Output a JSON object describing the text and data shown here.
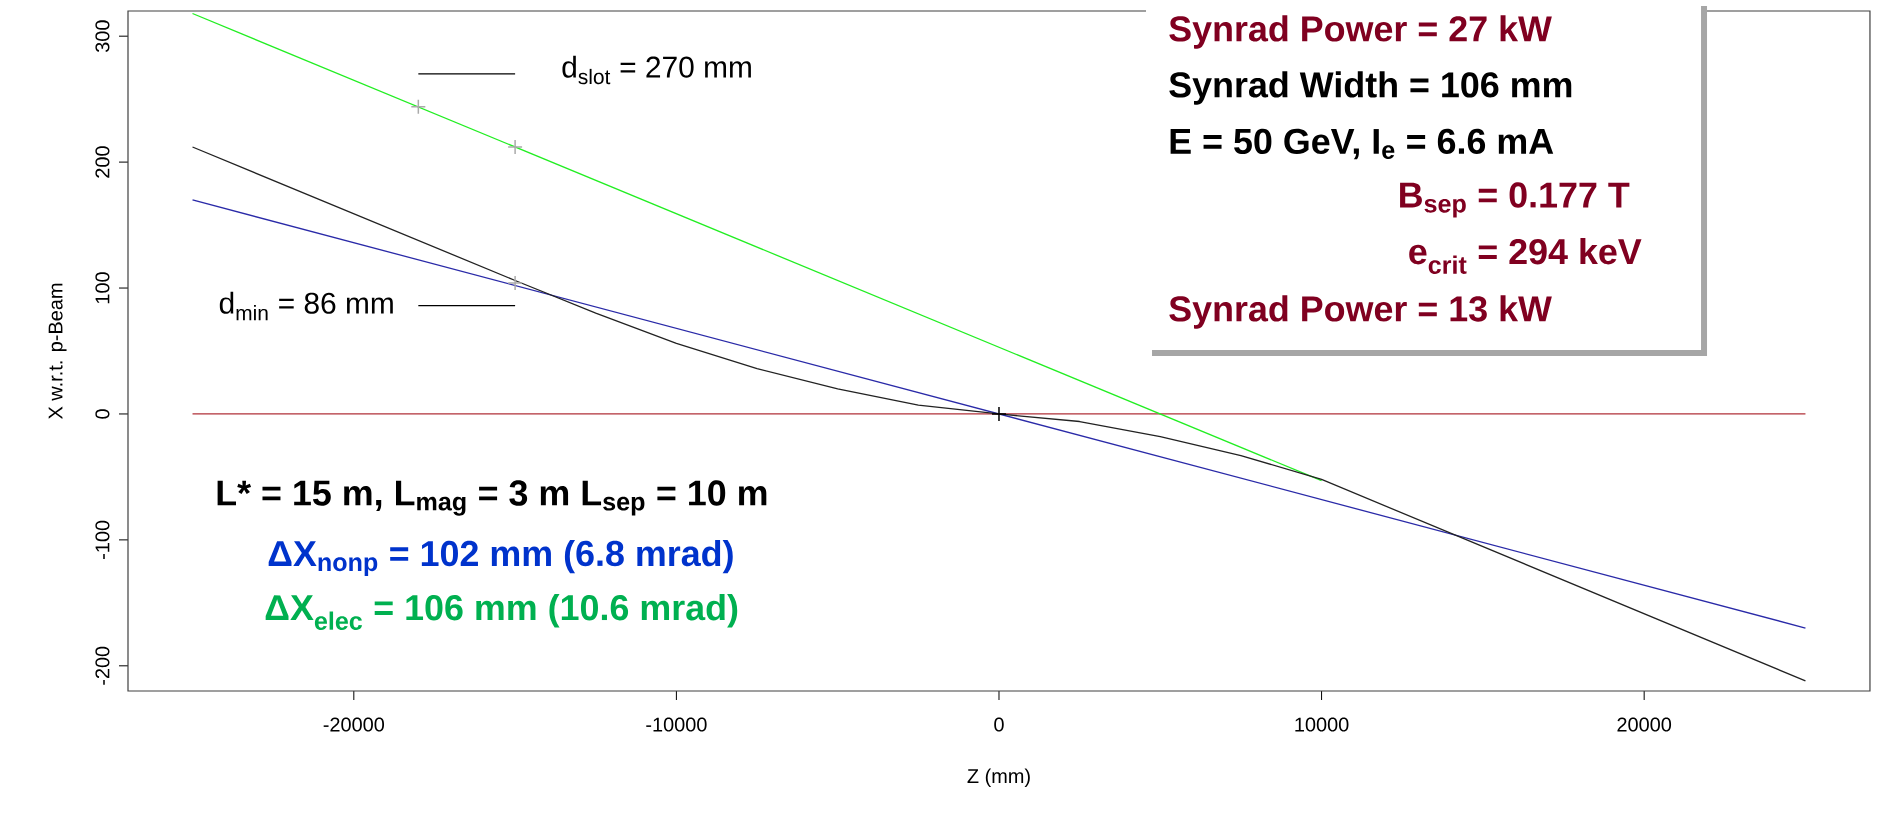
{
  "chart_data": {
    "type": "line",
    "xlabel": "Z (mm)",
    "ylabel": "X w.r.t. p-Beam",
    "xlim": [
      -27000,
      27000
    ],
    "ylim": [
      -220,
      320
    ],
    "xticks": [
      -20000,
      -10000,
      0,
      10000,
      20000
    ],
    "yticks": [
      -200,
      -100,
      0,
      100,
      200,
      300
    ],
    "series": [
      {
        "color": "#b03038",
        "x": [
          -25000,
          25000
        ],
        "values": [
          0,
          0
        ]
      },
      {
        "color": "#22ee22",
        "x": [
          -25000,
          10000
        ],
        "values": [
          318,
          -53
        ]
      },
      {
        "color": "#2a2aa8",
        "x": [
          -25000,
          25000
        ],
        "values": [
          170,
          -170
        ]
      },
      {
        "color": "#222222",
        "x": [
          -25000,
          -15000,
          -12500,
          -10000,
          -7500,
          -5000,
          -2500,
          0,
          2500,
          5000,
          7500,
          10000,
          25000
        ],
        "values": [
          212,
          106,
          80,
          56,
          36,
          20,
          7,
          0,
          -6,
          -18,
          -33,
          -52,
          -212
        ]
      },
      {
        "color": "#000000",
        "x": [
          -18000,
          -15000
        ],
        "values": [
          270,
          270
        ]
      },
      {
        "color": "#000000",
        "x": [
          -18000,
          -15000
        ],
        "values": [
          86,
          86
        ]
      },
      {
        "type": "scatter",
        "marker": "cross",
        "color": "#aaaaaa",
        "x": [
          -18000,
          -15000,
          -15000
        ],
        "values": [
          244,
          212,
          104
        ]
      },
      {
        "type": "scatter",
        "marker": "cross",
        "color": "#000000",
        "x": [
          0
        ],
        "values": [
          0
        ]
      }
    ],
    "annotations": [
      "Synrad Power =  27 kW",
      "Synrad Width = 106 mm",
      "E = 50 GeV, I$_{e}$ = 6.6 mA",
      "B$_{sep}$ = 0.177 T",
      "e$_{crit}$ = 294 keV",
      "Synrad Power =  13 kW",
      "L* = 15 m, L$_{mag}$ = 3 m   L$_{sep}$ = 10 m",
      "ΔX$_{nonp}$ = 102 mm (6.8 mrad)",
      "ΔX$_{elec}$ = 106 mm (10.6 mrad)",
      "d$_{slot}$ = 270 mm",
      "d$_{min}$ = 86 mm"
    ]
  }
}
